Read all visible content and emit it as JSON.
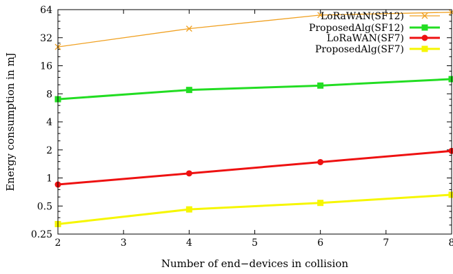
{
  "chart_data": {
    "type": "line",
    "xlabel": "Number of end−devices in collision",
    "ylabel": "Energy consumption in mJ",
    "x_ticks": [
      "2",
      "3",
      "4",
      "5",
      "6",
      "7",
      "8"
    ],
    "y_ticks": [
      "0.25",
      "0.5",
      "1",
      "2",
      "4",
      "8",
      "16",
      "32",
      "64"
    ],
    "xlim": [
      2,
      8
    ],
    "ylim": [
      0.25,
      64
    ],
    "y_scale": "log2",
    "grid": false,
    "legend_position": "top-right",
    "x": [
      2,
      4,
      6,
      8
    ],
    "series": [
      {
        "name": "LoRaWAN(SF12)",
        "color": "#f0a020",
        "marker": "cross",
        "values": [
          25.5,
          40,
          56,
          60
        ]
      },
      {
        "name": "ProposedAlg(SF12)",
        "color": "#22dd22",
        "marker": "square",
        "values": [
          7.0,
          8.8,
          9.8,
          11.5
        ]
      },
      {
        "name": "LoRaWAN(SF7)",
        "color": "#ee1111",
        "marker": "circle",
        "values": [
          0.85,
          1.12,
          1.48,
          1.95
        ]
      },
      {
        "name": "ProposedAlg(SF7)",
        "color": "#f6f600",
        "marker": "square",
        "values": [
          0.32,
          0.46,
          0.54,
          0.66
        ]
      }
    ]
  }
}
